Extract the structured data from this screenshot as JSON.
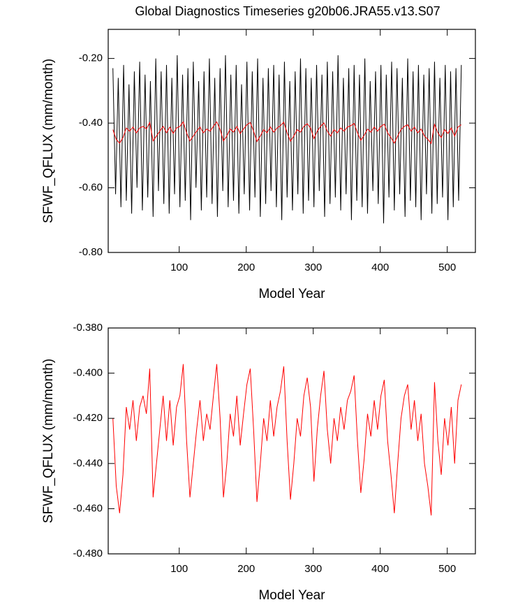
{
  "chart_data": [
    {
      "type": "line",
      "title": "Global Diagnostics Timeseries g20b06.JRA55.v13.S07",
      "x_label": "Model Year",
      "y_label": "SFWF_QFLUX (mm/month)",
      "xlim": [
        -6,
        542
      ],
      "ylim": [
        -0.8,
        -0.11
      ],
      "xticks": [
        100,
        200,
        300,
        400,
        500
      ],
      "yticks": [
        {
          "value": -0.8,
          "label": "-0.80"
        },
        {
          "value": -0.6,
          "label": "-0.60"
        },
        {
          "value": -0.4,
          "label": "-0.40"
        },
        {
          "value": -0.2,
          "label": "-0.20"
        }
      ],
      "series": [
        {
          "color": "#000000",
          "x": [
            1,
            5,
            9,
            13,
            17,
            21,
            25,
            29,
            33,
            37,
            41,
            45,
            49,
            53,
            57,
            61,
            65,
            69,
            73,
            77,
            81,
            85,
            89,
            93,
            97,
            101,
            105,
            109,
            113,
            117,
            121,
            125,
            129,
            133,
            137,
            141,
            145,
            149,
            153,
            157,
            161,
            165,
            169,
            173,
            177,
            181,
            185,
            189,
            193,
            197,
            201,
            205,
            209,
            213,
            217,
            221,
            225,
            229,
            233,
            237,
            241,
            245,
            249,
            253,
            257,
            261,
            265,
            269,
            273,
            277,
            281,
            285,
            289,
            293,
            297,
            301,
            305,
            309,
            313,
            317,
            321,
            325,
            329,
            333,
            337,
            341,
            345,
            349,
            353,
            357,
            361,
            365,
            369,
            373,
            377,
            381,
            385,
            389,
            393,
            397,
            401,
            405,
            409,
            413,
            417,
            421,
            425,
            429,
            433,
            437,
            441,
            445,
            449,
            453,
            457,
            461,
            465,
            469,
            473,
            477,
            481,
            485,
            489,
            493,
            497,
            501,
            505,
            509,
            513,
            517,
            521
          ],
          "values": [
            -0.23,
            -0.62,
            -0.26,
            -0.66,
            -0.22,
            -0.64,
            -0.28,
            -0.68,
            -0.24,
            -0.6,
            -0.21,
            -0.67,
            -0.25,
            -0.63,
            -0.27,
            -0.69,
            -0.2,
            -0.61,
            -0.24,
            -0.65,
            -0.22,
            -0.68,
            -0.26,
            -0.62,
            -0.19,
            -0.66,
            -0.25,
            -0.64,
            -0.23,
            -0.7,
            -0.21,
            -0.6,
            -0.27,
            -0.67,
            -0.24,
            -0.63,
            -0.2,
            -0.65,
            -0.26,
            -0.69,
            -0.23,
            -0.61,
            -0.19,
            -0.66,
            -0.25,
            -0.64,
            -0.22,
            -0.68,
            -0.28,
            -0.62,
            -0.21,
            -0.67,
            -0.24,
            -0.63,
            -0.2,
            -0.69,
            -0.26,
            -0.65,
            -0.23,
            -0.61,
            -0.22,
            -0.66,
            -0.25,
            -0.7,
            -0.21,
            -0.63,
            -0.27,
            -0.67,
            -0.24,
            -0.62,
            -0.2,
            -0.68,
            -0.23,
            -0.64,
            -0.26,
            -0.66,
            -0.22,
            -0.61,
            -0.25,
            -0.69,
            -0.21,
            -0.65,
            -0.24,
            -0.63,
            -0.19,
            -0.67,
            -0.26,
            -0.62,
            -0.23,
            -0.7,
            -0.22,
            -0.64,
            -0.25,
            -0.66,
            -0.2,
            -0.68,
            -0.27,
            -0.61,
            -0.24,
            -0.65,
            -0.22,
            -0.71,
            -0.25,
            -0.63,
            -0.21,
            -0.67,
            -0.23,
            -0.62,
            -0.26,
            -0.69,
            -0.2,
            -0.64,
            -0.24,
            -0.66,
            -0.22,
            -0.7,
            -0.25,
            -0.62,
            -0.23,
            -0.68,
            -0.21,
            -0.65,
            -0.26,
            -0.63,
            -0.22,
            -0.7,
            -0.24,
            -0.66,
            -0.23,
            -0.64,
            -0.22
          ]
        },
        {
          "color": "#ff0000",
          "x": [
            1,
            6,
            11,
            16,
            21,
            26,
            31,
            36,
            41,
            46,
            51,
            56,
            61,
            66,
            71,
            76,
            81,
            86,
            91,
            96,
            101,
            106,
            111,
            116,
            121,
            126,
            131,
            136,
            141,
            146,
            151,
            156,
            161,
            166,
            171,
            176,
            181,
            186,
            191,
            196,
            201,
            206,
            211,
            216,
            221,
            226,
            231,
            236,
            241,
            246,
            251,
            256,
            261,
            266,
            271,
            276,
            281,
            286,
            291,
            296,
            301,
            306,
            311,
            316,
            321,
            326,
            331,
            336,
            341,
            346,
            351,
            356,
            361,
            366,
            371,
            376,
            381,
            386,
            391,
            396,
            401,
            406,
            411,
            416,
            421,
            426,
            431,
            436,
            441,
            446,
            451,
            456,
            461,
            466,
            471,
            476,
            481,
            486,
            491,
            496,
            501,
            506,
            511,
            516,
            521
          ],
          "values": [
            -0.42,
            -0.45,
            -0.462,
            -0.445,
            -0.415,
            -0.425,
            -0.412,
            -0.43,
            -0.415,
            -0.41,
            -0.418,
            -0.398,
            -0.455,
            -0.44,
            -0.425,
            -0.41,
            -0.43,
            -0.412,
            -0.432,
            -0.415,
            -0.41,
            -0.396,
            -0.43,
            -0.455,
            -0.44,
            -0.425,
            -0.412,
            -0.43,
            -0.418,
            -0.425,
            -0.41,
            -0.396,
            -0.42,
            -0.455,
            -0.44,
            -0.418,
            -0.428,
            -0.41,
            -0.432,
            -0.418,
            -0.405,
            -0.398,
            -0.425,
            -0.457,
            -0.44,
            -0.42,
            -0.43,
            -0.412,
            -0.428,
            -0.415,
            -0.408,
            -0.397,
            -0.43,
            -0.456,
            -0.44,
            -0.42,
            -0.428,
            -0.41,
            -0.402,
            -0.415,
            -0.448,
            -0.425,
            -0.41,
            -0.399,
            -0.425,
            -0.44,
            -0.42,
            -0.43,
            -0.415,
            -0.425,
            -0.412,
            -0.408,
            -0.401,
            -0.43,
            -0.453,
            -0.438,
            -0.418,
            -0.428,
            -0.412,
            -0.425,
            -0.41,
            -0.403,
            -0.43,
            -0.445,
            -0.462,
            -0.44,
            -0.42,
            -0.41,
            -0.405,
            -0.425,
            -0.412,
            -0.43,
            -0.418,
            -0.44,
            -0.45,
            -0.463,
            -0.404,
            -0.43,
            -0.445,
            -0.42,
            -0.432,
            -0.415,
            -0.44,
            -0.412,
            -0.405
          ]
        }
      ]
    },
    {
      "type": "line",
      "x_label": "Model Year",
      "y_label": "SFWF_QFLUX (mm/month)",
      "xlim": [
        -6,
        542
      ],
      "ylim": [
        -0.48,
        -0.38
      ],
      "xticks": [
        100,
        200,
        300,
        400,
        500
      ],
      "yticks": [
        {
          "value": -0.48,
          "label": "-0.480"
        },
        {
          "value": -0.46,
          "label": "-0.460"
        },
        {
          "value": -0.44,
          "label": "-0.440"
        },
        {
          "value": -0.42,
          "label": "-0.420"
        },
        {
          "value": -0.4,
          "label": "-0.400"
        },
        {
          "value": -0.38,
          "label": "-0.380"
        }
      ],
      "series": [
        {
          "color": "#ff0000",
          "x": [
            1,
            6,
            11,
            16,
            21,
            26,
            31,
            36,
            41,
            46,
            51,
            56,
            61,
            66,
            71,
            76,
            81,
            86,
            91,
            96,
            101,
            106,
            111,
            116,
            121,
            126,
            131,
            136,
            141,
            146,
            151,
            156,
            161,
            166,
            171,
            176,
            181,
            186,
            191,
            196,
            201,
            206,
            211,
            216,
            221,
            226,
            231,
            236,
            241,
            246,
            251,
            256,
            261,
            266,
            271,
            276,
            281,
            286,
            291,
            296,
            301,
            306,
            311,
            316,
            321,
            326,
            331,
            336,
            341,
            346,
            351,
            356,
            361,
            366,
            371,
            376,
            381,
            386,
            391,
            396,
            401,
            406,
            411,
            416,
            421,
            426,
            431,
            436,
            441,
            446,
            451,
            456,
            461,
            466,
            471,
            476,
            481,
            486,
            491,
            496,
            501,
            506,
            511,
            516,
            521
          ],
          "values": [
            -0.42,
            -0.45,
            -0.462,
            -0.445,
            -0.415,
            -0.425,
            -0.412,
            -0.43,
            -0.415,
            -0.41,
            -0.418,
            -0.398,
            -0.455,
            -0.44,
            -0.425,
            -0.41,
            -0.43,
            -0.412,
            -0.432,
            -0.415,
            -0.41,
            -0.396,
            -0.43,
            -0.455,
            -0.44,
            -0.425,
            -0.412,
            -0.43,
            -0.418,
            -0.425,
            -0.41,
            -0.396,
            -0.42,
            -0.455,
            -0.44,
            -0.418,
            -0.428,
            -0.41,
            -0.432,
            -0.418,
            -0.405,
            -0.398,
            -0.425,
            -0.457,
            -0.44,
            -0.42,
            -0.43,
            -0.412,
            -0.428,
            -0.415,
            -0.408,
            -0.397,
            -0.43,
            -0.456,
            -0.44,
            -0.42,
            -0.428,
            -0.41,
            -0.402,
            -0.415,
            -0.448,
            -0.425,
            -0.41,
            -0.399,
            -0.425,
            -0.44,
            -0.42,
            -0.43,
            -0.415,
            -0.425,
            -0.412,
            -0.408,
            -0.401,
            -0.43,
            -0.453,
            -0.438,
            -0.418,
            -0.428,
            -0.412,
            -0.425,
            -0.41,
            -0.403,
            -0.43,
            -0.445,
            -0.462,
            -0.44,
            -0.42,
            -0.41,
            -0.405,
            -0.425,
            -0.412,
            -0.43,
            -0.418,
            -0.44,
            -0.45,
            -0.463,
            -0.404,
            -0.43,
            -0.445,
            -0.42,
            -0.432,
            -0.415,
            -0.44,
            -0.412,
            -0.405
          ]
        }
      ]
    }
  ]
}
